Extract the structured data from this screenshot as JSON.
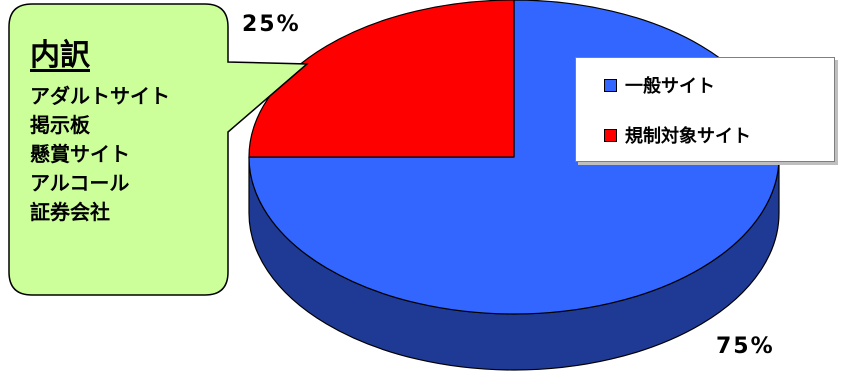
{
  "chart_data": {
    "type": "pie",
    "title": "",
    "categories": [
      "一般サイト",
      "規制対象サイト"
    ],
    "values": [
      75,
      25
    ],
    "labels": [
      "75%",
      "25%"
    ],
    "colors": [
      "#3366ff",
      "#ff0000"
    ],
    "side_colors": [
      "#1f3a94",
      "#b00000"
    ],
    "three_d": true,
    "legend_position": "right"
  },
  "legend": {
    "items": [
      {
        "label": "一般サイト",
        "color": "#3366ff"
      },
      {
        "label": "規制対象サイト",
        "color": "#ff0000"
      }
    ]
  },
  "callout": {
    "title": "内訳",
    "items": [
      "アダルトサイト",
      "掲示板",
      "懸賞サイト",
      "アルコール",
      "証券会社"
    ],
    "fill": "#ccff99"
  }
}
